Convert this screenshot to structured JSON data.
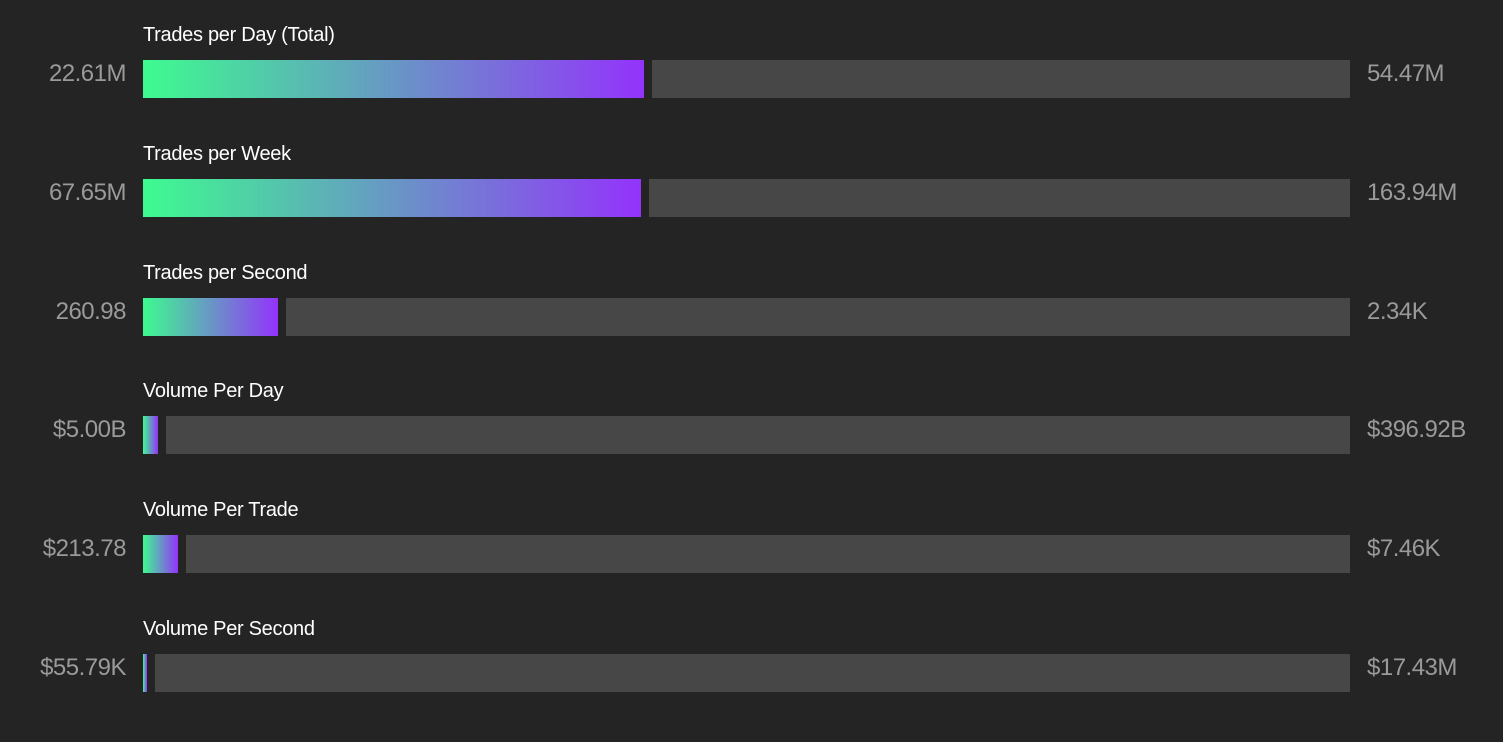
{
  "chart_data": {
    "type": "bar",
    "orientation": "horizontal",
    "colors": {
      "gradient_start": "#3dfb8f",
      "gradient_end": "#9333fb",
      "track": "#474747",
      "background": "#242424"
    },
    "rows": [
      {
        "title": "Trades per Day (Total)",
        "value_label": "22.61M",
        "max_label": "54.47M",
        "value": 22.61,
        "max": 54.47
      },
      {
        "title": "Trades per Week",
        "value_label": "67.65M",
        "max_label": "163.94M",
        "value": 67.65,
        "max": 163.94
      },
      {
        "title": "Trades per Second",
        "value_label": "260.98",
        "max_label": "2.34K",
        "value": 260.98,
        "max": 2340
      },
      {
        "title": "Volume Per Day",
        "value_label": "$5.00B",
        "max_label": "$396.92B",
        "value": 5.0,
        "max": 396.92
      },
      {
        "title": "Volume Per Trade",
        "value_label": "$213.78",
        "max_label": "$7.46K",
        "value": 213.78,
        "max": 7460
      },
      {
        "title": "Volume Per Second",
        "value_label": "$55.79K",
        "max_label": "$17.43M",
        "value": 55.79,
        "max": 17430
      }
    ]
  }
}
